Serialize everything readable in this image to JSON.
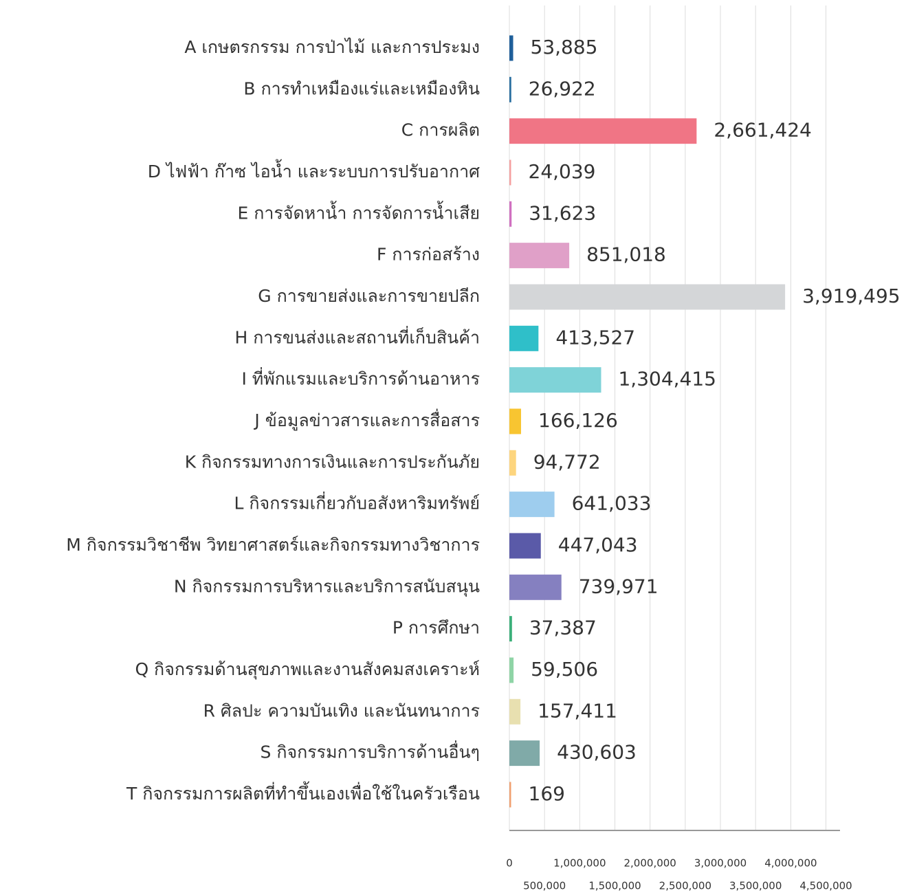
{
  "chart_data": {
    "type": "bar",
    "orientation": "horizontal",
    "categories": [
      "A เกษตรกรรม การป่าไม้ และการประมง",
      "B การทำเหมืองแร่และเหมืองหิน",
      "C การผลิต",
      "D ไฟฟ้า ก๊าซ ไอน้ำ และระบบการปรับอากาศ",
      "E การจัดหาน้ำ การจัดการน้ำเสีย",
      "F การก่อสร้าง",
      "G การขายส่งและการขายปลีก",
      "H การขนส่งและสถานที่เก็บสินค้า",
      "I ที่พักแรมและบริการด้านอาหาร",
      "J ข้อมูลข่าวสารและการสื่อสาร",
      "K กิจกรรมทางการเงินและการประกันภัย",
      "L กิจกรรมเกี่ยวกับอสังหาริมทรัพย์",
      "M กิจกรรมวิชาชีพ วิทยาศาสตร์และกิจกรรมทางวิชาการ",
      "N กิจกรรมการบริหารและบริการสนับสนุน",
      "P การศึกษา",
      "Q กิจกรรมด้านสุขภาพและงานสังคมสงเคราะห์",
      "R ศิลปะ ความบันเทิง และนันทนาการ",
      "S กิจกรรมการบริการด้านอื่นๆ",
      "T กิจกรรมการผลิตที่ทำขึ้นเองเพื่อใช้ในครัวเรือน"
    ],
    "values": [
      53885,
      26922,
      2661424,
      24039,
      31623,
      851018,
      3919495,
      413527,
      1304415,
      166126,
      94772,
      641033,
      447043,
      739971,
      37387,
      59506,
      157411,
      430603,
      169
    ],
    "value_labels": [
      "53,885",
      "26,922",
      "2,661,424",
      "24,039",
      "31,623",
      "851,018",
      "3,919,495",
      "413,527",
      "1,304,415",
      "166,126",
      "94,772",
      "641,033",
      "447,043",
      "739,971",
      "37,387",
      "59,506",
      "157,411",
      "430,603",
      "169"
    ],
    "colors": [
      "#1f5f9a",
      "#2a6fa0",
      "#f07585",
      "#f4a0a0",
      "#d070c0",
      "#e0a0c8",
      "#d4d6d8",
      "#2fbfc9",
      "#7fd3d8",
      "#f8c531",
      "#fdd57e",
      "#9ecdee",
      "#5a5aa8",
      "#8580c0",
      "#3cb07a",
      "#8fd4a6",
      "#e8e0b0",
      "#80aaa8",
      "#f0a070"
    ],
    "xlim": [
      0,
      4700000
    ],
    "xticks": [
      0,
      {
        "value": 500000,
        "label": "500,000"
      },
      {
        "value": 1000000,
        "label": "1,000,000"
      },
      {
        "value": 1500000,
        "label": "1,500,000"
      },
      {
        "value": 2000000,
        "label": "2,000,000"
      },
      {
        "value": 2500000,
        "label": "2,500,000"
      },
      {
        "value": 3000000,
        "label": "3,000,000"
      },
      {
        "value": 3500000,
        "label": "3,500,000"
      },
      {
        "value": 4000000,
        "label": "4,000,000"
      },
      {
        "value": 4500000,
        "label": "4,500,000"
      }
    ],
    "grid": true
  }
}
